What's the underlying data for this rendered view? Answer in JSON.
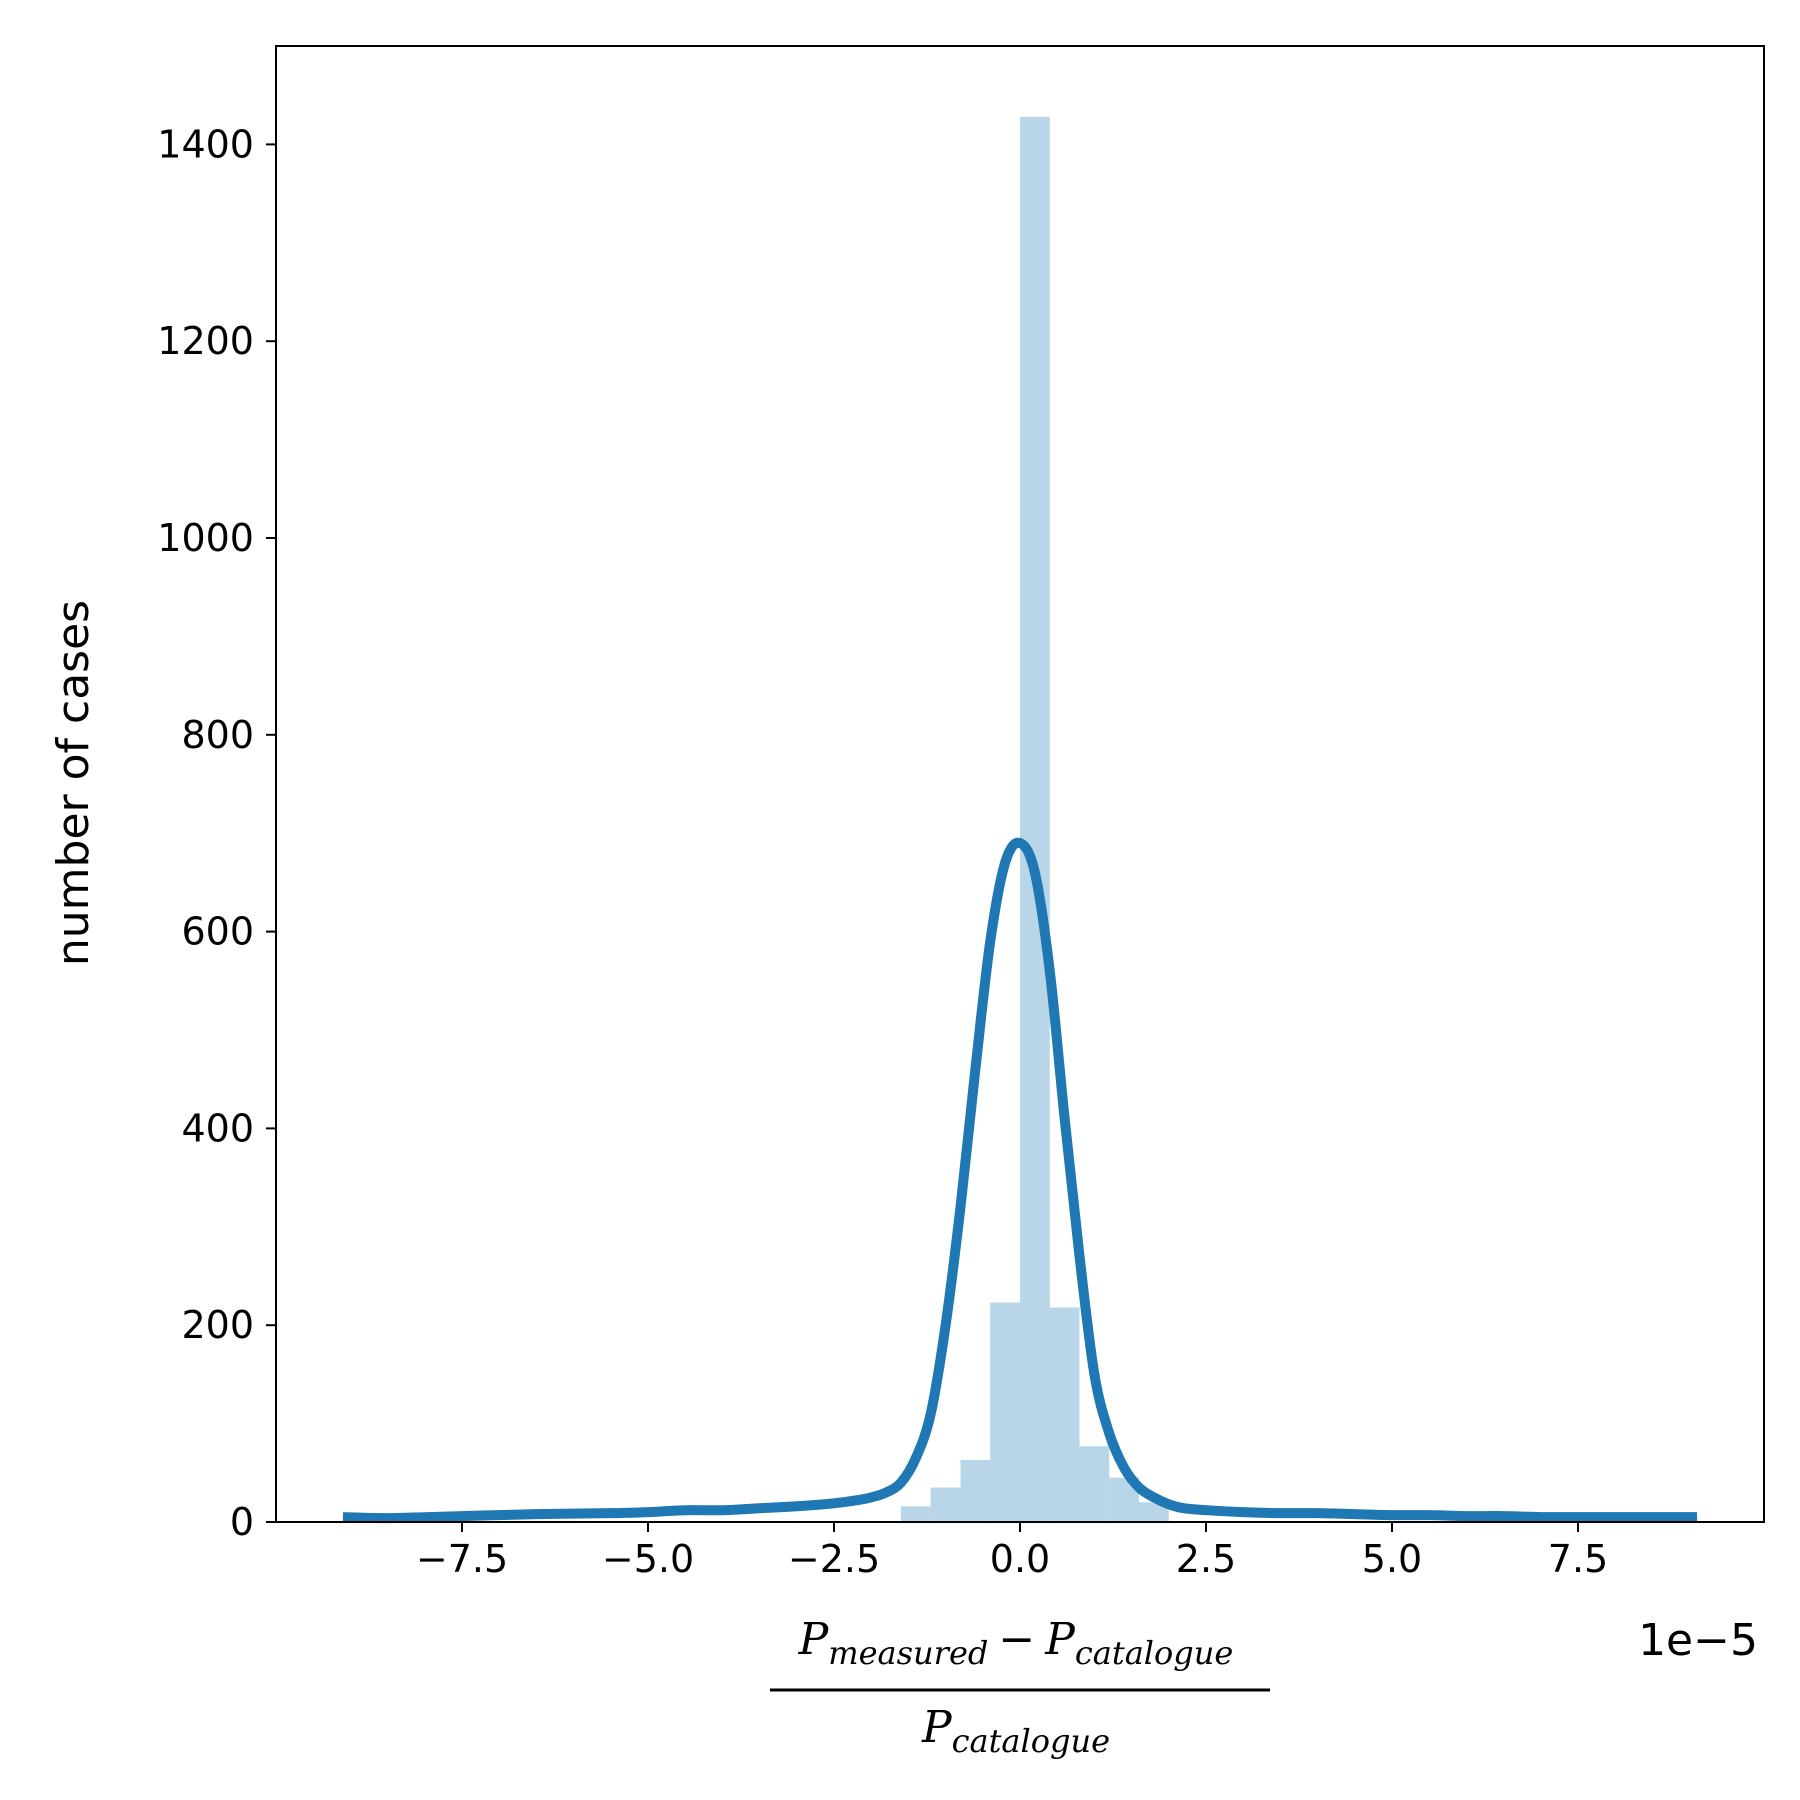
{
  "chart_data": {
    "type": "bar",
    "title": "",
    "xlabel": {
      "num_P1": "P",
      "num_sub1": "measured",
      "num_minus": "−",
      "num_P2": "P",
      "num_sub2": "catalogue",
      "den_P": "P",
      "den_sub": "catalogue"
    },
    "ylabel": "number of cases",
    "x_offset_label": "1e−5",
    "xlim": [
      -10.0,
      10.0
    ],
    "ylim": [
      0,
      1500
    ],
    "x_scale_factor": 1e-05,
    "x_ticks": [
      {
        "value": -7.5,
        "label": "−7.5"
      },
      {
        "value": -5.0,
        "label": "−5.0"
      },
      {
        "value": -2.5,
        "label": "−2.5"
      },
      {
        "value": 0.0,
        "label": "0.0"
      },
      {
        "value": 2.5,
        "label": "2.5"
      },
      {
        "value": 5.0,
        "label": "5.0"
      },
      {
        "value": 7.5,
        "label": "7.5"
      }
    ],
    "y_ticks": [
      {
        "value": 0,
        "label": "0"
      },
      {
        "value": 200,
        "label": "200"
      },
      {
        "value": 400,
        "label": "400"
      },
      {
        "value": 600,
        "label": "600"
      },
      {
        "value": 800,
        "label": "800"
      },
      {
        "value": 1000,
        "label": "1000"
      },
      {
        "value": 1200,
        "label": "1200"
      },
      {
        "value": 1400,
        "label": "1400"
      }
    ],
    "histogram": {
      "color": "#b9d5e8",
      "bins": [
        {
          "x0": -1.6,
          "x1": -1.2,
          "count": 16
        },
        {
          "x0": -1.2,
          "x1": -0.8,
          "count": 35
        },
        {
          "x0": -0.8,
          "x1": -0.4,
          "count": 63
        },
        {
          "x0": -0.4,
          "x1": 0.0,
          "count": 223
        },
        {
          "x0": 0.0,
          "x1": 0.4,
          "count": 1428
        },
        {
          "x0": 0.4,
          "x1": 0.8,
          "count": 218
        },
        {
          "x0": 0.8,
          "x1": 1.2,
          "count": 77
        },
        {
          "x0": 1.2,
          "x1": 1.6,
          "count": 45
        },
        {
          "x0": 1.6,
          "x1": 2.0,
          "count": 20
        }
      ]
    },
    "kde": {
      "color": "#1f77b4",
      "x": [
        -9.1,
        -8.5,
        -7.5,
        -6.5,
        -5.5,
        -5.0,
        -4.5,
        -4.0,
        -3.5,
        -3.0,
        -2.5,
        -2.2,
        -2.0,
        -1.8,
        -1.6,
        -1.4,
        -1.2,
        -1.0,
        -0.8,
        -0.6,
        -0.4,
        -0.2,
        0.0,
        0.2,
        0.4,
        0.6,
        0.8,
        1.0,
        1.2,
        1.4,
        1.6,
        1.8,
        2.0,
        2.2,
        2.5,
        3.0,
        3.5,
        4.0,
        4.5,
        5.0,
        5.5,
        6.0,
        6.5,
        7.0,
        7.5,
        8.0,
        8.5,
        9.1
      ],
      "y": [
        5,
        4,
        6,
        8,
        9,
        10,
        12,
        12,
        14,
        16,
        19,
        22,
        25,
        30,
        40,
        65,
        110,
        200,
        320,
        460,
        590,
        670,
        690,
        660,
        560,
        410,
        270,
        150,
        90,
        55,
        35,
        25,
        18,
        14,
        12,
        10,
        9,
        9,
        8,
        7,
        7,
        6,
        6,
        5,
        5,
        5,
        5,
        5
      ]
    }
  }
}
